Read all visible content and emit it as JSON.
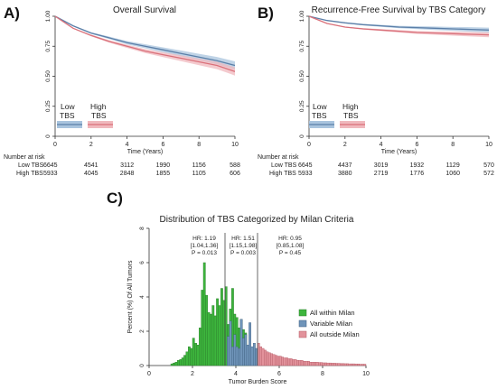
{
  "panels": [
    {
      "letter": "A)",
      "title": "Overall Survival"
    },
    {
      "letter": "B)",
      "title": "Recurrence-Free Survival by TBS Category"
    },
    {
      "letter": "C)",
      "title": "Distribution of TBS Categorized by Milan Criteria"
    }
  ],
  "risk_table": {
    "header": "Number at risk",
    "a": [
      {
        "label": "Low TBS",
        "values": [
          "6645",
          "4541",
          "3112",
          "1990",
          "1156",
          "588"
        ]
      },
      {
        "label": "High TBS",
        "values": [
          "5933",
          "4045",
          "2848",
          "1855",
          "1105",
          "606"
        ]
      }
    ],
    "b": [
      {
        "label": "Low TBS",
        "values": [
          "6645",
          "4437",
          "3019",
          "1932",
          "1129",
          "570"
        ]
      },
      {
        "label": "High TBS",
        "values": [
          "5933",
          "3880",
          "2719",
          "1776",
          "1060",
          "572"
        ]
      }
    ]
  },
  "km_legend": {
    "low": [
      "Low",
      "TBS"
    ],
    "high": [
      "High",
      "TBS"
    ]
  },
  "colors": {
    "low": "#5b7fa8",
    "low_band": "#a9c4de",
    "high": "#d9707a",
    "high_band": "#f0b8bd",
    "within": "#3db53d",
    "variable": "#6f94b9",
    "outside": "#e2929b"
  },
  "hr_annotations": [
    {
      "lines": [
        "HR: 1.19",
        "[1.04,1.36]",
        "P = 0.013"
      ]
    },
    {
      "lines": [
        "HR: 1.51",
        "[1.15,1.98]",
        "P = 0.003"
      ]
    },
    {
      "lines": [
        "HR: 0.95",
        "[0.85,1.08]",
        "P = 0.45"
      ]
    }
  ],
  "chart_data": [
    {
      "type": "line",
      "title": "Overall Survival",
      "xlabel": "Time (Years)",
      "ylabel": "",
      "xlim": [
        0,
        10
      ],
      "ylim": [
        0,
        1
      ],
      "xticks": [
        "0",
        "2",
        "4",
        "6",
        "8",
        "10"
      ],
      "yticks": [
        "0",
        "0.25",
        "0.50",
        "0.75",
        "1.00"
      ],
      "x": [
        0,
        1,
        2,
        3,
        4,
        5,
        6,
        7,
        8,
        9,
        10
      ],
      "series": [
        {
          "name": "Low TBS",
          "values": [
            1.0,
            0.92,
            0.86,
            0.82,
            0.78,
            0.75,
            0.72,
            0.69,
            0.66,
            0.63,
            0.59
          ]
        },
        {
          "name": "High TBS",
          "values": [
            1.0,
            0.9,
            0.84,
            0.79,
            0.75,
            0.71,
            0.68,
            0.65,
            0.62,
            0.59,
            0.54
          ]
        }
      ]
    },
    {
      "type": "line",
      "title": "Recurrence-Free Survival by TBS Category",
      "xlabel": "Time (Years)",
      "ylabel": "",
      "xlim": [
        0,
        10
      ],
      "ylim": [
        0,
        1
      ],
      "xticks": [
        "0",
        "2",
        "4",
        "6",
        "8",
        "10"
      ],
      "yticks": [
        "0",
        "0.25",
        "0.50",
        "0.75",
        "1.00"
      ],
      "x": [
        0,
        1,
        2,
        3,
        4,
        5,
        6,
        7,
        8,
        9,
        10
      ],
      "series": [
        {
          "name": "Low TBS",
          "values": [
            1.0,
            0.965,
            0.945,
            0.93,
            0.92,
            0.91,
            0.905,
            0.9,
            0.895,
            0.89,
            0.885
          ]
        },
        {
          "name": "High TBS",
          "values": [
            1.0,
            0.94,
            0.91,
            0.895,
            0.885,
            0.875,
            0.865,
            0.86,
            0.855,
            0.85,
            0.845
          ]
        }
      ]
    },
    {
      "type": "bar",
      "title": "Distribution of TBS Categorized by Milan Criteria",
      "xlabel": "Tumor Burden Score",
      "ylabel": "Percent (%) Of All Tumors",
      "xlim": [
        0,
        10
      ],
      "ylim": [
        0,
        8
      ],
      "xticks": [
        "0",
        "2",
        "4",
        "6",
        "8",
        "10"
      ],
      "yticks": [
        "0",
        "2",
        "4",
        "6",
        "8"
      ],
      "bin_width": 0.1,
      "legend": [
        "All within Milan",
        "Variable Milan",
        "All outside Milan"
      ],
      "legend_position": "right",
      "cutoffs": [
        3.5,
        5.0
      ],
      "bins_within": {
        "start": 1.0,
        "values": [
          0.1,
          0.15,
          0.2,
          0.3,
          0.35,
          0.45,
          0.6,
          0.8,
          1.1,
          1.0,
          1.6,
          1.3,
          1.2,
          2.2,
          4.4,
          6.0,
          4.1,
          3.1,
          3.0,
          3.5,
          2.9,
          3.9,
          3.5,
          4.5,
          3.8,
          4.6,
          2.4,
          3.3,
          4.5,
          3.0,
          2.8,
          2.2,
          2.7,
          2.1,
          1.9,
          0.9
        ]
      },
      "bins_variable": {
        "start": 3.6,
        "values": [
          1.7,
          2.6,
          1.1,
          1.8,
          1.1,
          1.0,
          2.7,
          1.6,
          1.8,
          1.2,
          2.5,
          1.1,
          1.3,
          1.0
        ]
      },
      "bins_outside": {
        "start": 5.0,
        "values": [
          1.3,
          1.1,
          1.0,
          0.9,
          0.8,
          0.75,
          0.7,
          0.65,
          0.6,
          0.55,
          0.55,
          0.5,
          0.45,
          0.45,
          0.4,
          0.4,
          0.35,
          0.35,
          0.3,
          0.3,
          0.3,
          0.25,
          0.25,
          0.25,
          0.2,
          0.2,
          0.2,
          0.2,
          0.18,
          0.18,
          0.16,
          0.16,
          0.15,
          0.15,
          0.14,
          0.14,
          0.13,
          0.13,
          0.12,
          0.12,
          0.11,
          0.11,
          0.1,
          0.1,
          0.1,
          0.09,
          0.09,
          0.08,
          0.08,
          0.08
        ]
      }
    }
  ]
}
